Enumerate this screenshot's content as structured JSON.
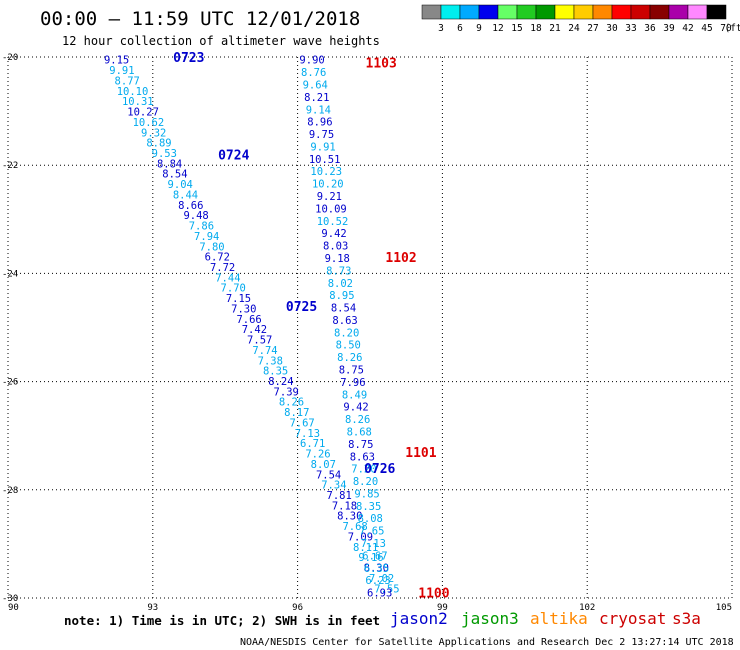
{
  "header": {
    "title": "00:00 – 11:59 UTC 12/01/2018",
    "subtitle": "12 hour collection of altimeter wave heights"
  },
  "colorbar": {
    "labels": [
      "3",
      "6",
      "9",
      "12",
      "15",
      "18",
      "21",
      "24",
      "27",
      "30",
      "33",
      "36",
      "39",
      "42",
      "45",
      "70",
      "(ft)"
    ],
    "colors": [
      "#888888",
      "#00eeee",
      "#00aaff",
      "#0000ee",
      "#66ff66",
      "#22cc22",
      "#009900",
      "#ffff00",
      "#ffcc00",
      "#ff8800",
      "#ff0000",
      "#cc0000",
      "#880000",
      "#aa00aa",
      "#ff88ff",
      "#000000"
    ]
  },
  "footer": {
    "note": "note: 1) Time is in UTC; 2) SWH is in feet",
    "credit": "NOAA/NESDIS Center for Satellite Applications and Research   Dec  2 13:27:14 UTC 2018",
    "satellites": [
      {
        "name": "jason2",
        "color": "#0000cc"
      },
      {
        "name": "jason3",
        "color": "#009900"
      },
      {
        "name": "altika",
        "color": "#ff8800"
      },
      {
        "name": "cryosat",
        "color": "#cc0000"
      },
      {
        "name": "s3a",
        "color": "#cc0000"
      }
    ]
  },
  "chart_data": {
    "type": "scatter",
    "xlim": [
      90,
      105
    ],
    "ylim": [
      -30,
      -20
    ],
    "xticks": [
      "90",
      "93",
      "96",
      "99",
      "102",
      "105"
    ],
    "yticks": [
      "-20",
      "-22",
      "-24",
      "-26",
      "-28",
      "-30"
    ],
    "grid": true,
    "swh_colors": {
      "light": "#00aaee",
      "dark": "#0000cc"
    },
    "series": [
      {
        "satellite": "jason2",
        "track_start": [
          92.25,
          -20.05
        ],
        "track_end": [
          97.85,
          -29.82
        ],
        "values": [
          9.15,
          9.91,
          8.77,
          10.1,
          10.31,
          10.27,
          10.62,
          9.32,
          8.89,
          9.53,
          8.84,
          8.54,
          9.04,
          8.44,
          8.66,
          9.48,
          7.86,
          7.94,
          7.8,
          6.72,
          7.72,
          7.44,
          7.7,
          7.15,
          7.3,
          7.66,
          7.42,
          7.57,
          7.74,
          7.38,
          8.35,
          8.24,
          7.39,
          8.26,
          8.17,
          7.67,
          7.13,
          6.71,
          7.26,
          8.07,
          7.54,
          7.34,
          7.81,
          7.18,
          8.3,
          7.68,
          7.09,
          8.11,
          9.16,
          8.3,
          7.02,
          7.55
        ],
        "passes": [
          {
            "time": "0723",
            "y": -20.0,
            "offset": 1.2
          },
          {
            "time": "0724",
            "y": -21.8,
            "offset": 1.1
          },
          {
            "time": "0725",
            "y": -24.6,
            "offset": 0.9
          },
          {
            "time": "0726",
            "y": -27.6,
            "offset": 0.8
          }
        ]
      },
      {
        "satellite": "cryosat",
        "track_start": [
          96.3,
          -20.05
        ],
        "track_end": [
          97.7,
          -29.9
        ],
        "values": [
          9.9,
          8.76,
          9.64,
          8.21,
          9.14,
          8.96,
          9.75,
          9.91,
          10.51,
          10.23,
          10.2,
          9.21,
          10.09,
          10.52,
          9.42,
          8.03,
          9.18,
          8.73,
          8.02,
          8.95,
          8.54,
          8.63,
          8.2,
          8.5,
          8.26,
          8.75,
          7.96,
          8.49,
          9.42,
          8.26,
          8.68,
          8.75,
          8.63,
          7.2,
          8.2,
          9.85,
          8.35,
          8.08,
          7.65,
          7.13,
          6.67,
          6.35,
          6.23,
          6.93
        ],
        "passes": [
          {
            "time": "1103",
            "y": -20.1,
            "offset": 1.1
          },
          {
            "time": "1102",
            "y": -23.7,
            "offset": 1.0
          },
          {
            "time": "1101",
            "y": -27.3,
            "offset": 0.9
          },
          {
            "time": "1100",
            "y": -29.9,
            "offset": 0.8
          }
        ]
      }
    ]
  }
}
